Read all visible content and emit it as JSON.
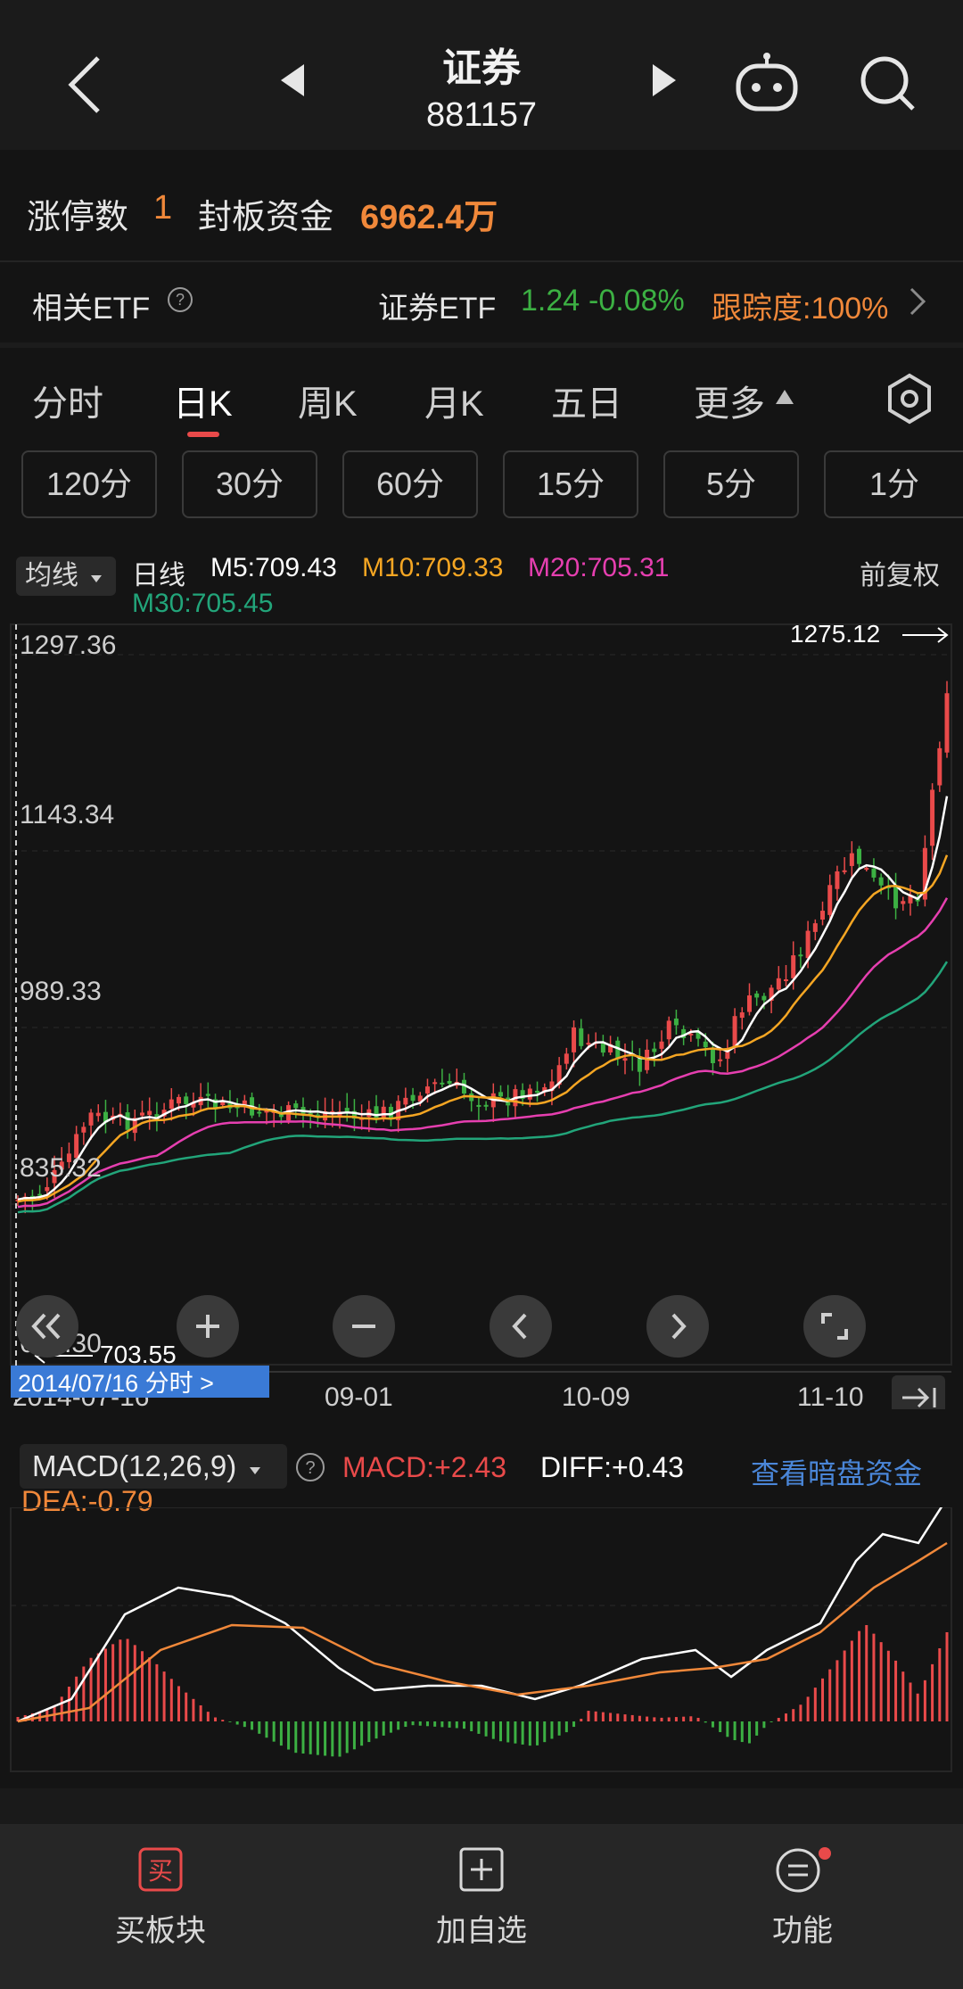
{
  "header": {
    "title": "证券",
    "code": "881157"
  },
  "limit_row": {
    "limit_label": "涨停数",
    "limit_value": "1",
    "fund_label": "封板资金",
    "fund_value": "6962.4万"
  },
  "etf_row": {
    "label": "相关ETF",
    "etf_name": "证券ETF",
    "price": "1.24",
    "change": "-0.08%",
    "tracking": "跟踪度:100%"
  },
  "tabs": [
    "分时",
    "日K",
    "周K",
    "月K",
    "五日",
    "更多"
  ],
  "active_tab": "日K",
  "minute_buttons": [
    "120分",
    "30分",
    "60分",
    "15分",
    "5分",
    "1分"
  ],
  "ma_legend": {
    "selector": "均线",
    "type": "日线",
    "m5": "M5:709.43",
    "m10": "M10:709.33",
    "m20": "M20:705.31",
    "m30": "M30:705.45",
    "adjust": "前复权"
  },
  "chart_data": [
    {
      "type": "candlestick",
      "y_ticks": [
        "1297.36",
        "1143.34",
        "989.33",
        "835.32",
        "681.30"
      ],
      "x_ticks": [
        "2014-07-16",
        "09-01",
        "10-09",
        "11-10"
      ],
      "high_label": "1275.12",
      "low_label": "703.55",
      "cursor_label": "2014/07/16 分时 >",
      "ylim": [
        681.3,
        1297.36
      ],
      "series": [
        {
          "name": "M5",
          "color": "#ffffff"
        },
        {
          "name": "M10",
          "color": "#f5a623"
        },
        {
          "name": "M20",
          "color": "#e63fb0"
        },
        {
          "name": "M30",
          "color": "#22a57a"
        }
      ]
    },
    {
      "type": "bar",
      "name_label": "MACD(12,26,9)",
      "macd": "MACD:+2.43",
      "diff": "DIFF:+0.43",
      "dea": "DEA:-0.79",
      "link": "查看暗盘资金"
    }
  ],
  "bottom_nav": [
    {
      "label": "买板块",
      "icon_text": "买"
    },
    {
      "label": "加自选"
    },
    {
      "label": "功能"
    }
  ],
  "colors": {
    "up": "#e94a4a",
    "down": "#3cb043",
    "accent": "#f0883a",
    "link": "#4a86d8"
  }
}
